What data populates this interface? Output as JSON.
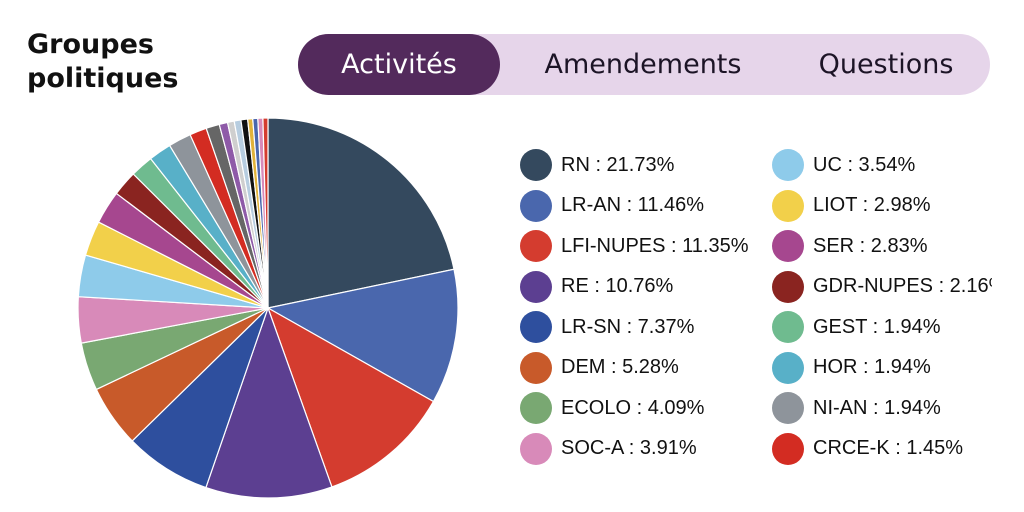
{
  "header": {
    "title_line1": "Groupes",
    "title_line2": "politiques"
  },
  "tabs": [
    {
      "label": "Activités",
      "active": true
    },
    {
      "label": "Amendements",
      "active": false
    },
    {
      "label": "Questions",
      "active": false
    }
  ],
  "chart_data": {
    "type": "pie",
    "unit": "%",
    "legend_placement": "right",
    "slices": [
      {
        "label": "RN",
        "value": 21.73,
        "color": "#34495e"
      },
      {
        "label": "LR-AN",
        "value": 11.46,
        "color": "#4a67ad"
      },
      {
        "label": "LFI-NUPES",
        "value": 11.35,
        "color": "#d43c2f"
      },
      {
        "label": "RE",
        "value": 10.76,
        "color": "#5c3f91"
      },
      {
        "label": "LR-SN",
        "value": 7.37,
        "color": "#2e4f9e"
      },
      {
        "label": "DEM",
        "value": 5.28,
        "color": "#c85a2a"
      },
      {
        "label": "ECOLO",
        "value": 4.09,
        "color": "#79a872"
      },
      {
        "label": "SOC-A",
        "value": 3.91,
        "color": "#d88ab9"
      },
      {
        "label": "UC",
        "value": 3.54,
        "color": "#8ecbea"
      },
      {
        "label": "LIOT",
        "value": 2.98,
        "color": "#f2d04a"
      },
      {
        "label": "SER",
        "value": 2.83,
        "color": "#a6478f"
      },
      {
        "label": "GDR-NUPES",
        "value": 2.16,
        "color": "#8a2420"
      },
      {
        "label": "GEST",
        "value": 1.94,
        "color": "#6fbb8f"
      },
      {
        "label": "HOR",
        "value": 1.94,
        "color": "#58b0c8"
      },
      {
        "label": "NI-AN",
        "value": 1.94,
        "color": "#8e949b"
      },
      {
        "label": "CRCE-K",
        "value": 1.45,
        "color": "#d32c22"
      }
    ],
    "extra_slice_colors": [
      "#666666",
      "#8e5aa8",
      "#cfcfcf",
      "#b7cde0",
      "#111111",
      "#e1b23a",
      "#4a67ad",
      "#d88ab9",
      "#d43c2f"
    ]
  }
}
